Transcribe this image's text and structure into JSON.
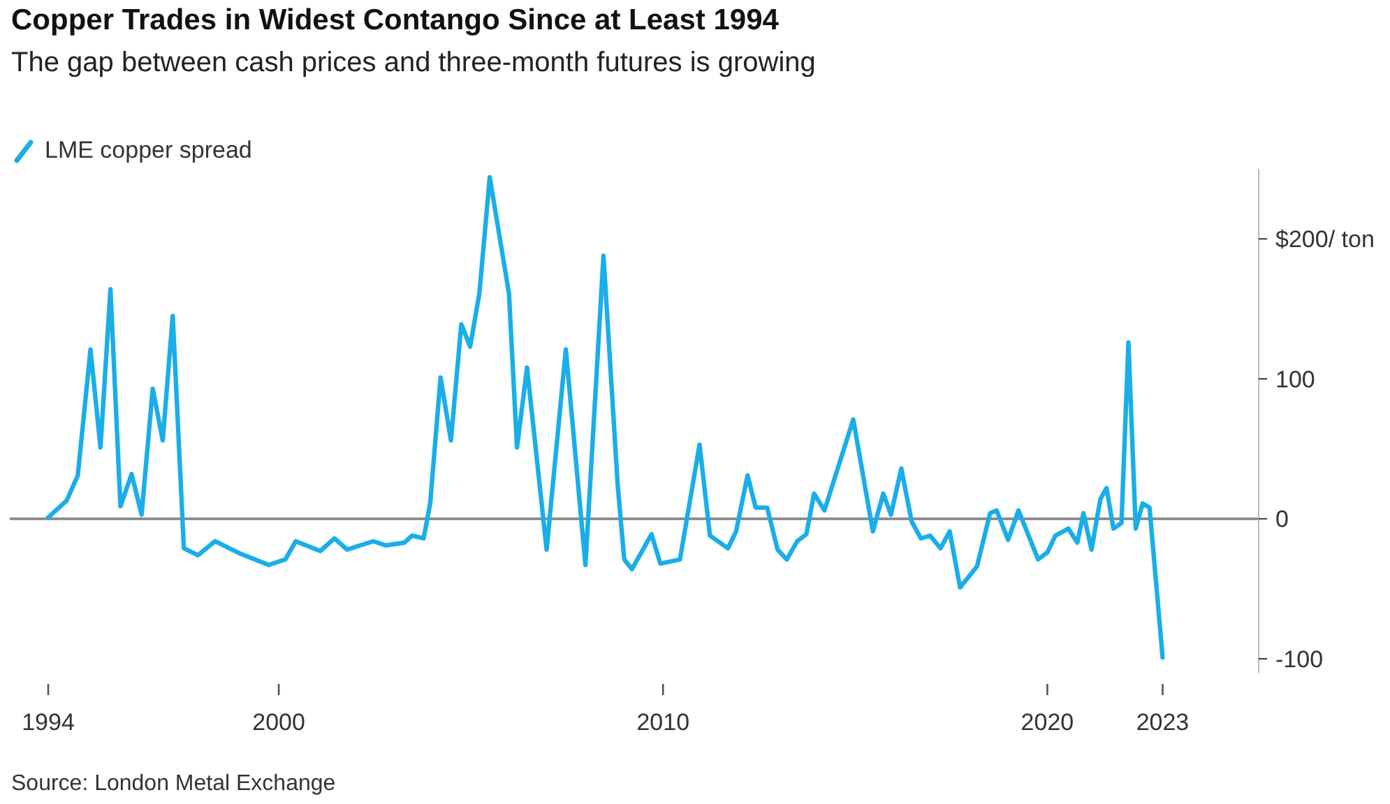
{
  "chart_data": {
    "type": "line",
    "title": "Copper Trades in Widest Contango Since at Least 1994",
    "subtitle": "The gap between cash prices and three-month futures is growing",
    "x": [
      1994.0,
      1994.48,
      1994.77,
      1995.1,
      1995.36,
      1995.62,
      1995.88,
      1996.17,
      1996.43,
      1996.72,
      1996.98,
      1997.24,
      1997.53,
      1997.9,
      1998.34,
      1999.01,
      1999.74,
      2000.17,
      2000.44,
      2001.08,
      2001.45,
      2001.78,
      2002.46,
      2002.79,
      2003.27,
      2003.47,
      2003.77,
      2003.94,
      2004.21,
      2004.48,
      2004.75,
      2004.98,
      2005.22,
      2005.49,
      2005.99,
      2006.2,
      2006.46,
      2006.97,
      2007.47,
      2007.98,
      2008.45,
      2008.82,
      2008.99,
      2009.19,
      2009.7,
      2009.93,
      2010.44,
      2010.95,
      2011.22,
      2011.69,
      2011.9,
      2012.2,
      2012.41,
      2012.71,
      2012.98,
      2013.22,
      2013.49,
      2013.73,
      2013.93,
      2014.2,
      2014.95,
      2015.46,
      2015.73,
      2015.93,
      2016.2,
      2016.47,
      2016.71,
      2016.95,
      2017.22,
      2017.46,
      2017.73,
      2018.17,
      2018.51,
      2018.68,
      2018.98,
      2019.25,
      2019.76,
      2020.0,
      2020.21,
      2020.55,
      2020.78,
      2020.94,
      2021.15,
      2021.38,
      2021.54,
      2021.72,
      2021.93,
      2022.11,
      2022.3,
      2022.48,
      2022.66,
      2023.0
    ],
    "series": [
      {
        "name": "LME copper spread",
        "color": "#1aaee8",
        "values": [
          1,
          13,
          31,
          121,
          51,
          164,
          9,
          32,
          3,
          93,
          56,
          145,
          -21,
          -26,
          -16,
          -25,
          -33,
          -29,
          -16,
          -23,
          -14,
          -22,
          -16,
          -19,
          -17,
          -12,
          -14,
          11,
          101,
          56,
          139,
          123,
          161,
          244,
          161,
          51,
          108,
          -22,
          121,
          -33,
          188,
          24,
          -29,
          -36,
          -11,
          -32,
          -29,
          53,
          -12,
          -21,
          -9,
          31,
          8,
          8,
          -22,
          -29,
          -16,
          -11,
          18,
          6,
          71,
          -9,
          18,
          3,
          36,
          -2,
          -14,
          -12,
          -21,
          -9,
          -49,
          -34,
          4,
          6,
          -15,
          6,
          -29,
          -24,
          -12,
          -7,
          -17,
          4,
          -22,
          14,
          22,
          -7,
          -3,
          126,
          -7,
          11,
          8,
          -99
        ]
      }
    ],
    "xlim": [
      1993,
      2025.5
    ],
    "xticks": [
      1994,
      2000,
      2010,
      2020,
      2023
    ],
    "ylim": [
      -110,
      250
    ],
    "yticks": [
      {
        "value": 200,
        "label": "$200/ ton"
      },
      100,
      0,
      -100
    ],
    "ref_lines": [
      {
        "axis": "y",
        "value": 0,
        "color": "#888888"
      }
    ],
    "legend": "top left",
    "annotations": [
      "Source: London Metal Exchange"
    ]
  }
}
